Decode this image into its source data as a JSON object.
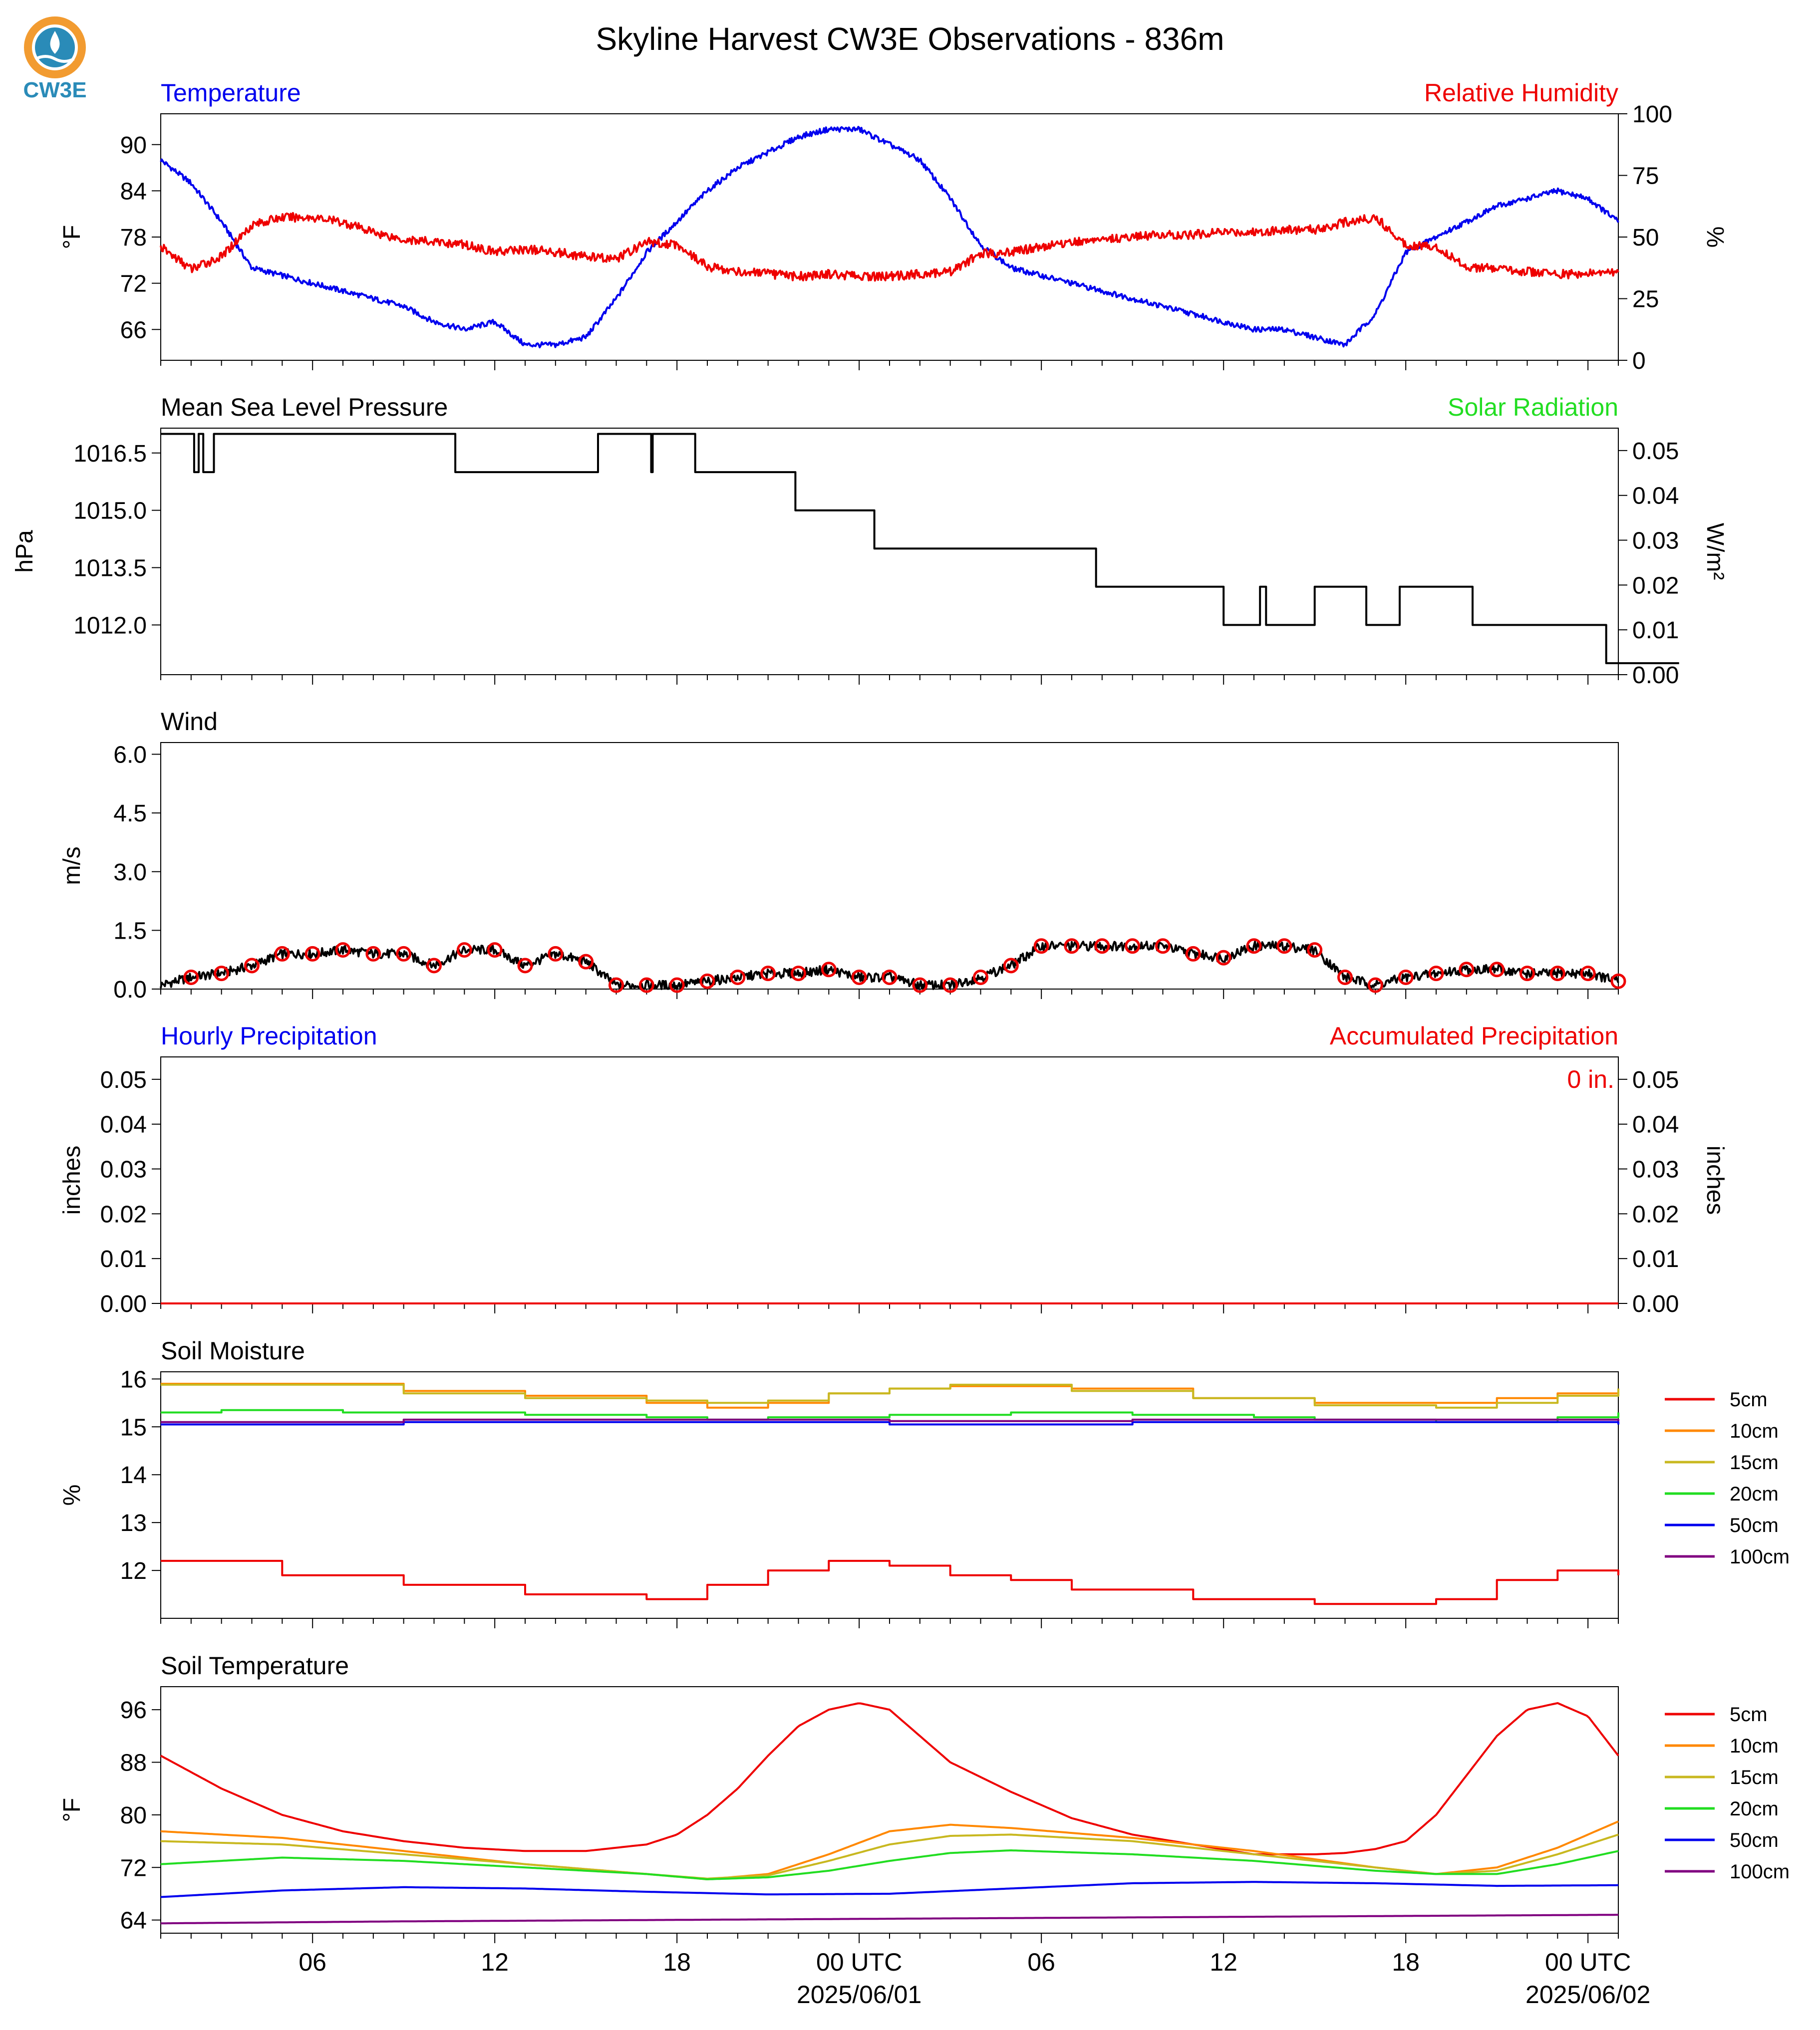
{
  "title": "Skyline Harvest CW3E Observations - 836m",
  "logo": {
    "text": "CW3E",
    "icon": "water-drop-sun-logo",
    "colors": {
      "sun": "#f29b30",
      "water": "#2a8bb8",
      "text": "#2a8bb8"
    }
  },
  "colors": {
    "blue": "#0000ee",
    "red": "#ee0000",
    "green": "#22dd22",
    "black": "#000000"
  },
  "chart_data": [
    {
      "id": "temp_rh",
      "type": "line",
      "title_left": "Temperature",
      "title_right": "Relative Humidity",
      "ylabel_left": "°F",
      "ylabel_right": "%",
      "ylim_left": [
        62,
        94
      ],
      "ylim_right": [
        0,
        100
      ],
      "yticks_left": [
        "90",
        "84",
        "78",
        "72",
        "66"
      ],
      "yticks_right": [
        "100",
        "75",
        "50",
        "25",
        "0"
      ],
      "series": [
        {
          "name": "Temperature",
          "axis": "left",
          "color": "#0000ee",
          "x": [
            0,
            1,
            2,
            3,
            4,
            5,
            6,
            7,
            8,
            9,
            10,
            11,
            12,
            13,
            14,
            15,
            16,
            17,
            18,
            19,
            20,
            21,
            22,
            23,
            24,
            25,
            26,
            27,
            28,
            29,
            30,
            31,
            32,
            33,
            34,
            35,
            36,
            37,
            38,
            39,
            40,
            41,
            42,
            43,
            44,
            45,
            46,
            47,
            48
          ],
          "values": [
            88,
            85,
            80,
            74,
            73,
            72,
            71,
            70,
            69,
            67,
            66,
            67,
            64,
            64,
            65,
            70,
            76,
            80,
            84,
            87,
            89,
            91,
            92,
            92,
            90,
            88,
            83,
            77,
            74,
            73,
            72,
            71,
            70,
            69,
            68,
            67,
            66,
            66,
            65,
            64,
            68,
            76,
            78,
            80,
            82,
            83,
            84,
            83,
            80
          ]
        },
        {
          "name": "Relative Humidity",
          "axis": "right",
          "color": "#ee0000",
          "x": [
            0,
            1,
            2,
            3,
            4,
            5,
            6,
            7,
            8,
            9,
            10,
            11,
            12,
            13,
            14,
            15,
            16,
            17,
            18,
            19,
            20,
            21,
            22,
            23,
            24,
            25,
            26,
            27,
            28,
            29,
            30,
            31,
            32,
            33,
            34,
            35,
            36,
            37,
            38,
            39,
            40,
            41,
            42,
            43,
            44,
            45,
            46,
            47,
            48
          ],
          "values": [
            46,
            37,
            42,
            55,
            58,
            58,
            56,
            52,
            49,
            48,
            47,
            44,
            45,
            44,
            42,
            41,
            48,
            47,
            38,
            36,
            35,
            34,
            35,
            34,
            34,
            35,
            36,
            43,
            44,
            46,
            48,
            49,
            50,
            51,
            51,
            52,
            52,
            53,
            53,
            56,
            58,
            47,
            46,
            38,
            37,
            36,
            35,
            35,
            36
          ]
        }
      ]
    },
    {
      "id": "pressure",
      "type": "line",
      "title_left": "Mean Sea Level Pressure",
      "title_right": "Solar Radiation",
      "ylabel_left": "hPa",
      "ylabel_right": "W/m²",
      "ylim_left": [
        1010.7,
        1017.15
      ],
      "ylim_right": [
        0.0,
        0.055
      ],
      "yticks_left": [
        "1016.5",
        "1015.0",
        "1013.5",
        "1012.0"
      ],
      "yticks_right": [
        "0.05",
        "0.04",
        "0.03",
        "0.02",
        "0.01",
        "0.00"
      ],
      "series": [
        {
          "name": "Mean Sea Level Pressure",
          "axis": "left",
          "color": "#000000",
          "x": [
            0,
            1,
            1.1,
            1.25,
            1.4,
            1.75,
            9.7,
            14.4,
            16.15,
            16.2,
            17.6,
            20.9,
            23.5,
            30.8,
            35.0,
            36.2,
            36.4,
            38.0,
            39.7,
            40.8,
            43.2,
            47.6,
            50.0
          ],
          "values": [
            1017.0,
            1017.0,
            1016.0,
            1017.0,
            1016.0,
            1017.0,
            1016.0,
            1017.0,
            1016.0,
            1017.0,
            1016.0,
            1015.0,
            1014.0,
            1013.0,
            1012.0,
            1013.0,
            1012.0,
            1013.0,
            1012.0,
            1013.0,
            1012.0,
            1011.0,
            1011.0
          ]
        }
      ]
    },
    {
      "id": "wind",
      "type": "line",
      "title_left": "Wind",
      "ylabel_left": "m/s",
      "ylim_left": [
        0,
        6.3
      ],
      "yticks_left": [
        "6.0",
        "4.5",
        "3.0",
        "1.5",
        "0.0"
      ],
      "series": [
        {
          "name": "Wind",
          "color": "#000000",
          "x": [
            0,
            1,
            2,
            3,
            4,
            5,
            6,
            7,
            8,
            9,
            10,
            11,
            12,
            13,
            14,
            15,
            16,
            17,
            18,
            19,
            20,
            21,
            22,
            23,
            24,
            25,
            26,
            27,
            28,
            29,
            30,
            31,
            32,
            33,
            34,
            35,
            36,
            37,
            38,
            39,
            40,
            41,
            42,
            43,
            44,
            45,
            46,
            47,
            48
          ],
          "values": [
            0.1,
            0.3,
            0.4,
            0.6,
            0.9,
            0.9,
            1.0,
            0.9,
            0.9,
            0.6,
            1.0,
            1.0,
            0.6,
            0.9,
            0.7,
            0.1,
            0.1,
            0.1,
            0.2,
            0.3,
            0.4,
            0.4,
            0.5,
            0.3,
            0.3,
            0.1,
            0.1,
            0.3,
            0.6,
            1.1,
            1.1,
            1.1,
            1.1,
            1.1,
            0.9,
            0.8,
            1.1,
            1.1,
            1.0,
            0.3,
            0.1,
            0.3,
            0.4,
            0.5,
            0.5,
            0.4,
            0.4,
            0.4,
            0.2
          ]
        }
      ]
    },
    {
      "id": "precip",
      "type": "line",
      "title_left": "Hourly Precipitation",
      "title_right": "Accumulated Precipitation",
      "ylabel_left": "inches",
      "ylabel_right": "inches",
      "ylim_left": [
        0,
        0.055
      ],
      "ylim_right": [
        0,
        0.055
      ],
      "yticks_left": [
        "0.05",
        "0.04",
        "0.03",
        "0.02",
        "0.01",
        "0.00"
      ],
      "yticks_right": [
        "0.05",
        "0.04",
        "0.03",
        "0.02",
        "0.01",
        "0.00"
      ],
      "annotation": "0 in.",
      "series": [
        {
          "name": "Accumulated Precipitation",
          "color": "#ee0000",
          "x": [
            0,
            48
          ],
          "values": [
            0,
            0
          ]
        }
      ]
    },
    {
      "id": "soil_moisture",
      "type": "line",
      "title_left": "Soil Moisture",
      "ylabel_left": "%",
      "ylim_left": [
        11.0,
        16.15
      ],
      "yticks_left": [
        "16",
        "15",
        "14",
        "13",
        "12"
      ],
      "series": [
        {
          "name": "5cm",
          "color": "#ee0000",
          "x": [
            0,
            4,
            8,
            12,
            16,
            18,
            20,
            22,
            24,
            26,
            28,
            30,
            34,
            38,
            42,
            44,
            46,
            48
          ],
          "values": [
            12.2,
            11.9,
            11.7,
            11.5,
            11.4,
            11.7,
            12.0,
            12.2,
            12.1,
            11.9,
            11.8,
            11.6,
            11.4,
            11.3,
            11.4,
            11.8,
            12.0,
            11.9
          ]
        },
        {
          "name": "10cm",
          "color": "#ff8800",
          "x": [
            0,
            4,
            8,
            12,
            16,
            18,
            20,
            22,
            24,
            26,
            28,
            30,
            34,
            38,
            42,
            44,
            46,
            48
          ],
          "values": [
            15.9,
            15.9,
            15.75,
            15.65,
            15.5,
            15.4,
            15.5,
            15.7,
            15.8,
            15.85,
            15.85,
            15.8,
            15.6,
            15.5,
            15.5,
            15.6,
            15.7,
            15.8
          ]
        },
        {
          "name": "15cm",
          "color": "#c8b820",
          "x": [
            0,
            4,
            8,
            12,
            16,
            18,
            20,
            22,
            24,
            26,
            28,
            30,
            34,
            38,
            42,
            44,
            46,
            48
          ],
          "values": [
            15.88,
            15.88,
            15.7,
            15.6,
            15.55,
            15.5,
            15.55,
            15.7,
            15.8,
            15.88,
            15.88,
            15.75,
            15.6,
            15.45,
            15.4,
            15.5,
            15.65,
            15.8
          ]
        },
        {
          "name": "20cm",
          "color": "#22dd22",
          "x": [
            0,
            2,
            6,
            12,
            16,
            18,
            20,
            24,
            28,
            32,
            36,
            38,
            42,
            46,
            48
          ],
          "values": [
            15.3,
            15.35,
            15.3,
            15.25,
            15.2,
            15.15,
            15.2,
            15.25,
            15.3,
            15.25,
            15.2,
            15.15,
            15.1,
            15.2,
            15.3
          ]
        },
        {
          "name": "50cm",
          "color": "#0000ee",
          "x": [
            0,
            8,
            16,
            24,
            32,
            40,
            48
          ],
          "values": [
            15.05,
            15.1,
            15.1,
            15.05,
            15.1,
            15.1,
            15.05
          ]
        },
        {
          "name": "100cm",
          "color": "#800080",
          "x": [
            0,
            8,
            16,
            24,
            32,
            40,
            48
          ],
          "values": [
            15.1,
            15.15,
            15.15,
            15.12,
            15.15,
            15.15,
            15.12
          ]
        }
      ]
    },
    {
      "id": "soil_temperature",
      "type": "line",
      "title_left": "Soil Temperature",
      "ylabel_left": "°F",
      "ylim_left": [
        62,
        99.5
      ],
      "yticks_left": [
        "96",
        "88",
        "80",
        "72",
        "64"
      ],
      "series": [
        {
          "name": "5cm",
          "color": "#ee0000",
          "x": [
            0,
            2,
            4,
            6,
            8,
            10,
            12,
            14,
            16,
            17,
            18,
            19,
            20,
            21,
            22,
            23,
            24,
            25,
            26,
            28,
            30,
            32,
            34,
            36,
            38,
            39,
            40,
            41,
            42,
            43,
            44,
            45,
            46,
            47,
            48
          ],
          "values": [
            89,
            84,
            80,
            77.5,
            76,
            75,
            74.5,
            74.5,
            75.5,
            77,
            80,
            84,
            89,
            93.5,
            96,
            97,
            96,
            92,
            88,
            83.5,
            79.5,
            77,
            75.5,
            74,
            74,
            74.2,
            74.8,
            76,
            80,
            86,
            92,
            96,
            97,
            95,
            89
          ]
        },
        {
          "name": "10cm",
          "color": "#ff8800",
          "x": [
            0,
            4,
            8,
            12,
            16,
            18,
            20,
            22,
            24,
            26,
            28,
            32,
            36,
            40,
            42,
            44,
            46,
            48
          ],
          "values": [
            77.5,
            76.5,
            74.5,
            72.5,
            71,
            70.2,
            71,
            74,
            77.5,
            78.5,
            78,
            76.5,
            74.5,
            72,
            71,
            72,
            75,
            79
          ]
        },
        {
          "name": "15cm",
          "color": "#c8b820",
          "x": [
            0,
            4,
            8,
            12,
            16,
            18,
            20,
            22,
            24,
            26,
            28,
            32,
            36,
            40,
            42,
            44,
            46,
            48
          ],
          "values": [
            76,
            75.5,
            74,
            72.5,
            71,
            70.3,
            70.8,
            73,
            75.5,
            76.8,
            77,
            76,
            74,
            72,
            71,
            71.5,
            74,
            77
          ]
        },
        {
          "name": "20cm",
          "color": "#22dd22",
          "x": [
            0,
            4,
            8,
            12,
            16,
            18,
            20,
            22,
            24,
            26,
            28,
            32,
            36,
            40,
            42,
            44,
            46,
            48
          ],
          "values": [
            72.5,
            73.5,
            73,
            72,
            71,
            70.2,
            70.5,
            71.5,
            73,
            74.2,
            74.6,
            74,
            73,
            71.5,
            71,
            71,
            72.5,
            74.5
          ]
        },
        {
          "name": "50cm",
          "color": "#0000ee",
          "x": [
            0,
            4,
            8,
            12,
            16,
            20,
            24,
            28,
            32,
            36,
            40,
            44,
            48
          ],
          "values": [
            67.5,
            68.5,
            69,
            68.8,
            68.3,
            67.9,
            68,
            68.8,
            69.6,
            69.8,
            69.6,
            69.2,
            69.3
          ]
        },
        {
          "name": "100cm",
          "color": "#800080",
          "x": [
            0,
            8,
            16,
            24,
            32,
            40,
            48
          ],
          "values": [
            63.5,
            63.8,
            64,
            64.2,
            64.4,
            64.6,
            64.8
          ]
        }
      ]
    }
  ],
  "x_axis": {
    "tick_labels": [
      {
        "x": 5,
        "label": "06"
      },
      {
        "x": 11,
        "label": "12"
      },
      {
        "x": 17,
        "label": "18"
      },
      {
        "x": 23,
        "label": "00 UTC",
        "sublabel": "2025/06/01"
      },
      {
        "x": 29,
        "label": "06"
      },
      {
        "x": 35,
        "label": "12"
      },
      {
        "x": 41,
        "label": "18"
      },
      {
        "x": 47,
        "label": "00 UTC",
        "sublabel": "2025/06/02"
      }
    ],
    "range": [
      0,
      48
    ]
  },
  "legend_labels": [
    "5cm",
    "10cm",
    "15cm",
    "20cm",
    "50cm",
    "100cm"
  ]
}
